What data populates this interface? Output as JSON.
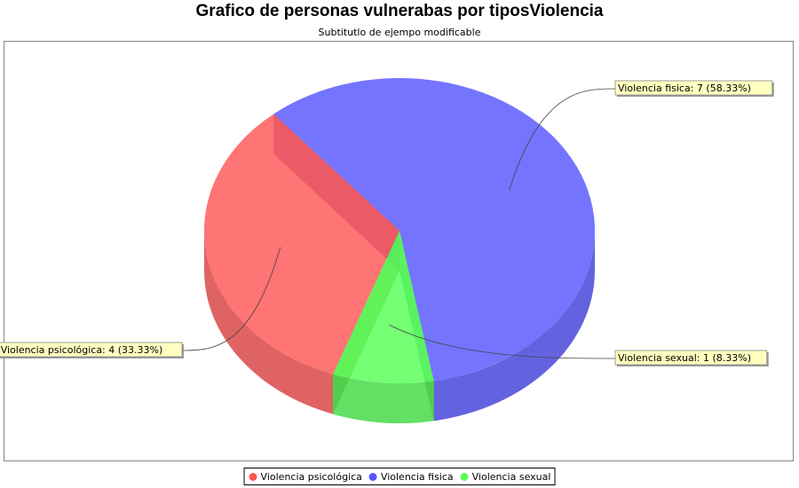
{
  "chart_data": {
    "type": "pie",
    "title": "Grafico de personas vulnerabas por tiposViolencia",
    "subtitle": "Subtitutlo de ejempo modificable",
    "categories": [
      "Violencia psicológica",
      "Violencia fisica",
      "Violencia sexual"
    ],
    "values": [
      4,
      7,
      1
    ],
    "percentages": [
      "33.33%",
      "58.33%",
      "8.33%"
    ],
    "colors": [
      "#FF5555",
      "#5555FF",
      "#55FF55"
    ],
    "labels": [
      "Violencia psicológica: 4 (33.33%)",
      "Violencia fisica: 7 (58.33%)",
      "Violencia sexual: 1 (8.33%)"
    ],
    "style": "3d",
    "legend_position": "bottom"
  },
  "legend": {
    "items": [
      {
        "label": "Violencia psicológica",
        "color": "#FF5555"
      },
      {
        "label": "Violencia fisica",
        "color": "#5555FF"
      },
      {
        "label": "Violencia sexual",
        "color": "#55FF55"
      }
    ]
  }
}
